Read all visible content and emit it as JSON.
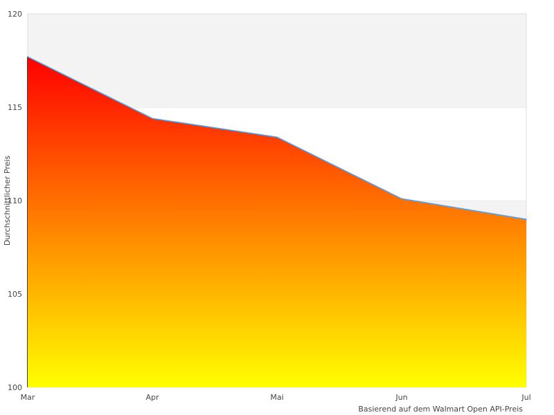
{
  "chart_data": {
    "type": "area",
    "categories": [
      "Mar",
      "Apr",
      "Mai",
      "Jun",
      "Jul"
    ],
    "values": [
      117.7,
      114.4,
      113.4,
      110.1,
      109.0
    ],
    "title": "",
    "xlabel": "Basierend auf dem Walmart Open API-Preis",
    "ylabel": "Durchschnittlicher Preis",
    "ylim": [
      100,
      120
    ],
    "yticks": [
      100,
      105,
      110,
      115,
      120
    ],
    "grid": "alternating horizontal bands",
    "colors": {
      "gradient_top": "#ff0000",
      "gradient_bottom": "#ffff00",
      "line": "#5aa0e6",
      "band": "#f3f3f3",
      "axis": "#dddddd"
    }
  }
}
